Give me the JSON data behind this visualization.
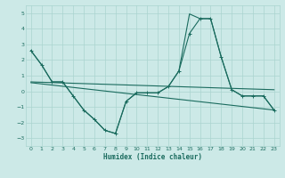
{
  "xlabel": "Humidex (Indice chaleur)",
  "background_color": "#cce9e7",
  "grid_color": "#aad4d0",
  "line_color": "#1a6b5e",
  "xlim": [
    -0.5,
    23.5
  ],
  "ylim": [
    -3.5,
    5.5
  ],
  "xticks": [
    0,
    1,
    2,
    3,
    4,
    5,
    6,
    7,
    8,
    9,
    10,
    11,
    12,
    13,
    14,
    15,
    16,
    17,
    18,
    19,
    20,
    21,
    22,
    23
  ],
  "yticks": [
    -3,
    -2,
    -1,
    0,
    1,
    2,
    3,
    4,
    5
  ],
  "line1_x": [
    0,
    1,
    2,
    3,
    4,
    5,
    6,
    7,
    8,
    9,
    10,
    11,
    12,
    13,
    14,
    15,
    16,
    17,
    18,
    19,
    20,
    21,
    22,
    23
  ],
  "line1_y": [
    2.6,
    1.7,
    0.6,
    0.6,
    -0.3,
    -1.2,
    -1.8,
    -2.5,
    -2.7,
    -0.65,
    -0.1,
    -0.1,
    -0.1,
    0.3,
    1.3,
    3.7,
    4.65,
    4.65,
    2.2,
    0.1,
    -0.3,
    -0.3,
    -0.3,
    -1.2
  ],
  "line2_x": [
    0,
    1,
    2,
    3,
    4,
    5,
    6,
    7,
    8,
    9,
    10,
    11,
    12,
    13,
    14,
    15,
    16,
    17,
    18,
    19,
    20,
    21,
    22,
    23
  ],
  "line2_y": [
    2.6,
    1.7,
    0.6,
    0.6,
    -0.3,
    -1.2,
    -1.8,
    -2.5,
    -2.7,
    -0.65,
    -0.1,
    -0.1,
    -0.1,
    0.3,
    1.3,
    4.95,
    4.65,
    4.65,
    2.2,
    0.1,
    -0.3,
    -0.3,
    -0.3,
    -1.2
  ],
  "line3_x": [
    0,
    23
  ],
  "line3_y": [
    0.6,
    0.1
  ],
  "line4_x": [
    0,
    23
  ],
  "line4_y": [
    0.55,
    -1.2
  ]
}
